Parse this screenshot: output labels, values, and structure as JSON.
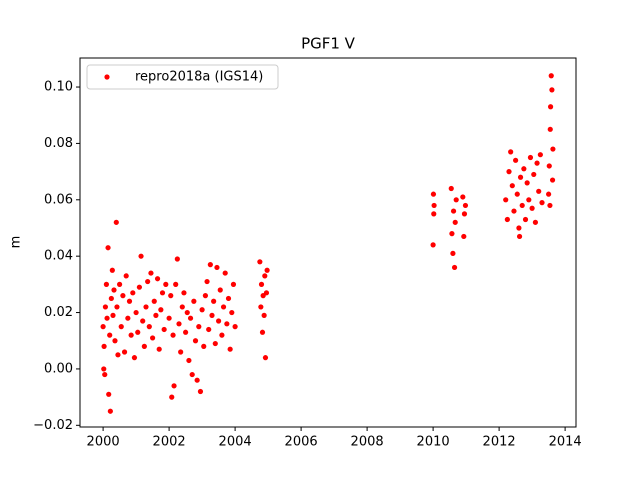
{
  "chart_data": {
    "type": "scatter",
    "title": "PGF1 V",
    "y_label": "m",
    "xlim": [
      1999.3,
      2014.33
    ],
    "ylim": [
      -0.0206,
      0.1103
    ],
    "xticks": [
      2000,
      2002,
      2004,
      2006,
      2008,
      2010,
      2012,
      2014
    ],
    "yticks": [
      {
        "value": -0.02,
        "label": "−0.02"
      },
      {
        "value": 0,
        "label": "0.00"
      },
      0.02,
      0.04,
      0.06,
      0.08,
      {
        "value": 0.1,
        "label": "0.10"
      }
    ],
    "legend": "upper left",
    "x": [
      2000.0,
      2000.02,
      2000.03,
      2000.05,
      2000.07,
      2000.1,
      2000.12,
      2000.15,
      2000.17,
      2000.2,
      2000.22,
      2000.25,
      2000.28,
      2000.3,
      2000.33,
      2000.36,
      2000.4,
      2000.42,
      2000.45,
      2000.5,
      2000.55,
      2000.6,
      2000.65,
      2000.7,
      2000.75,
      2000.8,
      2000.85,
      2000.9,
      2000.95,
      2001.0,
      2001.05,
      2001.1,
      2001.15,
      2001.2,
      2001.25,
      2001.3,
      2001.35,
      2001.4,
      2001.45,
      2001.5,
      2001.55,
      2001.6,
      2001.65,
      2001.7,
      2001.75,
      2001.8,
      2001.85,
      2001.9,
      2002.0,
      2002.05,
      2002.08,
      2002.12,
      2002.15,
      2002.2,
      2002.25,
      2002.3,
      2002.35,
      2002.4,
      2002.45,
      2002.5,
      2002.55,
      2002.6,
      2002.65,
      2002.7,
      2002.75,
      2002.8,
      2002.85,
      2002.9,
      2002.95,
      2003.0,
      2003.05,
      2003.1,
      2003.15,
      2003.2,
      2003.25,
      2003.3,
      2003.35,
      2003.4,
      2003.45,
      2003.5,
      2003.55,
      2003.6,
      2003.65,
      2003.7,
      2003.75,
      2003.8,
      2003.85,
      2003.9,
      2003.95,
      2004.0,
      2004.75,
      2004.78,
      2004.8,
      2004.83,
      2004.85,
      2004.88,
      2004.9,
      2004.92,
      2004.95,
      2004.97,
      2010.0,
      2010.01,
      2010.02,
      2010.03,
      2010.55,
      2010.57,
      2010.6,
      2010.62,
      2010.65,
      2010.67,
      2010.7,
      2010.9,
      2010.93,
      2010.95,
      2010.98,
      2012.2,
      2012.25,
      2012.3,
      2012.35,
      2012.4,
      2012.45,
      2012.5,
      2012.55,
      2012.6,
      2012.62,
      2012.65,
      2012.7,
      2012.75,
      2012.8,
      2012.85,
      2012.9,
      2012.95,
      2013.0,
      2013.05,
      2013.1,
      2013.15,
      2013.2,
      2013.25,
      2013.3,
      2013.5,
      2013.52,
      2013.54,
      2013.55,
      2013.56,
      2013.58,
      2013.6,
      2013.62,
      2013.63
    ],
    "series": [
      {
        "name": "repro2018a (IGS14)",
        "color": "#ff0000",
        "values": [
          0.015,
          0.0,
          0.008,
          -0.002,
          0.022,
          0.03,
          0.018,
          0.043,
          -0.009,
          0.012,
          -0.015,
          0.025,
          0.035,
          0.019,
          0.028,
          0.01,
          0.052,
          0.022,
          0.005,
          0.03,
          0.015,
          0.026,
          0.006,
          0.033,
          0.018,
          0.024,
          0.012,
          0.027,
          0.004,
          0.02,
          0.013,
          0.029,
          0.04,
          0.017,
          0.008,
          0.022,
          0.031,
          0.015,
          0.034,
          0.011,
          0.024,
          0.019,
          0.032,
          0.007,
          0.021,
          0.027,
          0.014,
          0.03,
          0.018,
          0.026,
          -0.01,
          0.012,
          -0.006,
          0.03,
          0.039,
          0.016,
          0.006,
          0.022,
          0.027,
          0.013,
          0.02,
          0.003,
          0.018,
          -0.002,
          0.024,
          0.01,
          -0.004,
          0.015,
          -0.008,
          0.021,
          0.008,
          0.026,
          0.031,
          0.014,
          0.037,
          0.019,
          0.024,
          0.009,
          0.036,
          0.017,
          0.028,
          0.012,
          0.022,
          0.034,
          0.016,
          0.025,
          0.007,
          0.02,
          0.03,
          0.015,
          0.038,
          0.022,
          0.03,
          0.013,
          0.026,
          0.019,
          0.033,
          0.004,
          0.027,
          0.035,
          0.044,
          0.062,
          0.055,
          0.058,
          0.064,
          0.048,
          0.041,
          0.056,
          0.036,
          0.052,
          0.06,
          0.061,
          0.047,
          0.055,
          0.058,
          0.06,
          0.053,
          0.07,
          0.077,
          0.065,
          0.056,
          0.074,
          0.062,
          0.05,
          0.047,
          0.068,
          0.058,
          0.071,
          0.053,
          0.066,
          0.06,
          0.075,
          0.057,
          0.069,
          0.052,
          0.073,
          0.063,
          0.076,
          0.059,
          0.062,
          0.072,
          0.058,
          0.085,
          0.093,
          0.104,
          0.099,
          0.067,
          0.078
        ]
      }
    ]
  }
}
